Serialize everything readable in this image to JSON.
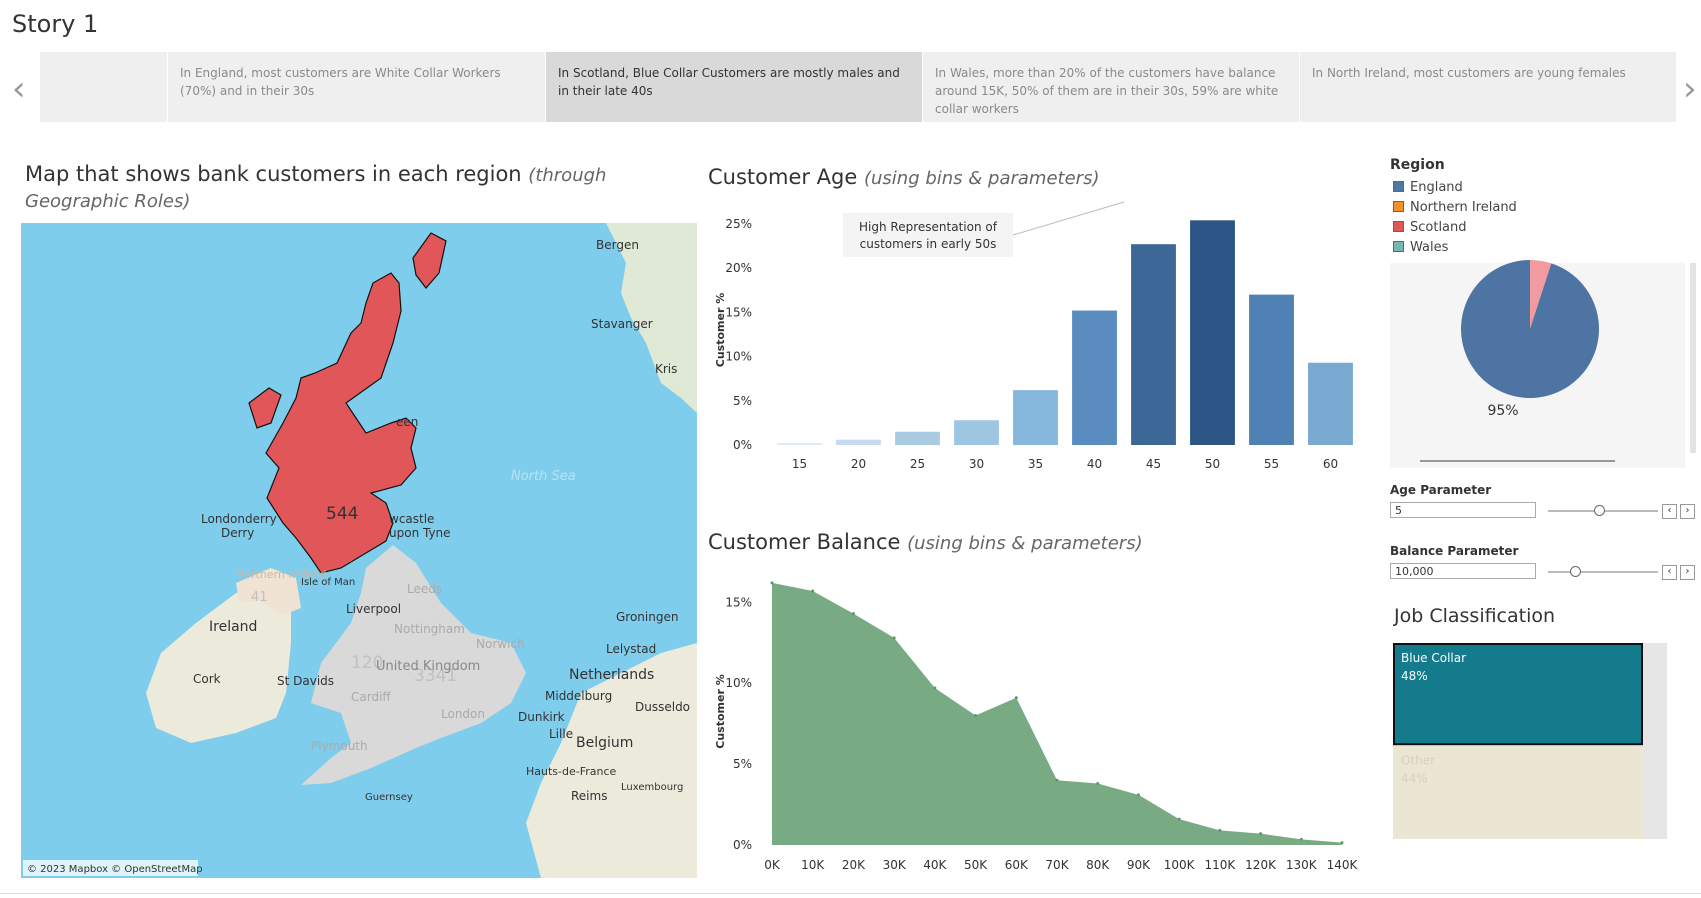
{
  "story": {
    "title": "Story 1",
    "points": [
      {
        "text": ""
      },
      {
        "text": "In England, most customers are White Collar Workers (70%) and in their 30s"
      },
      {
        "text": "In Scotland, Blue Collar Customers  are mostly males and in their late 40s"
      },
      {
        "text": "In Wales, more than 20% of the customers have balance around 15K, 50% of them are in their 30s, 59% are white collar workers"
      },
      {
        "text": "In North Ireland, most customers are young females"
      }
    ],
    "prev_icon": "chevron-left-icon",
    "next_icon": "chevron-right-icon"
  },
  "map": {
    "title": "Map that shows bank customers in each region",
    "subtitle": "(through Geographic Roles)",
    "highlight_region": "Scotland",
    "highlight_value": "544",
    "other_values": {
      "wales": "120",
      "england": "3341",
      "northern_ireland": "41"
    },
    "places": [
      "Bergen",
      "Stavanger",
      "Kris",
      "een",
      "North Sea",
      "Londonderry",
      "Derry",
      "Northern Ireland",
      "Isle of Man",
      "wcastle",
      "upon Tyne",
      "Leeds",
      "Liverpool",
      "Nottingham",
      "Norwich",
      "Ireland",
      "United Kingdom",
      "Groningen",
      "Lelystad",
      "Netherlands",
      "Cork",
      "St Davids",
      "Cardiff",
      "London",
      "Middelburg",
      "Dunkirk",
      "Dusseldo",
      "Lille",
      "Belgium",
      "Plymouth",
      "Hauts-de-France",
      "Guernsey",
      "Reims",
      "Luxembourg"
    ],
    "attribution": "© 2023 Mapbox © OpenStreetMap",
    "colors": {
      "sea": "#7fcdec",
      "scotland": "#e15759",
      "land": "#d9d9d9"
    }
  },
  "age_chart": {
    "title": "Customer Age",
    "subtitle": "(using bins & parameters)",
    "annotation": [
      "High Representation of",
      "customers in early 50s"
    ]
  },
  "balance_chart": {
    "title": "Customer Balance",
    "subtitle": "(using bins & parameters)"
  },
  "legend": {
    "title": "Region",
    "items": [
      {
        "label": "England",
        "color": "#4e79a7"
      },
      {
        "label": "Northern Ireland",
        "color": "#f28e2b"
      },
      {
        "label": "Scotland",
        "color": "#e15759"
      },
      {
        "label": "Wales",
        "color": "#76b7b2"
      }
    ]
  },
  "parameters": {
    "age": {
      "label": "Age Parameter",
      "value": "5"
    },
    "balance": {
      "label": "Balance Parameter",
      "value": "10,000"
    }
  },
  "job": {
    "title": "Job Classification"
  },
  "chart_data": [
    {
      "type": "bar",
      "title": "Customer Age",
      "ylabel": "Customer %",
      "categories": [
        "15",
        "20",
        "25",
        "30",
        "35",
        "40",
        "45",
        "50",
        "55",
        "60"
      ],
      "values": [
        0.2,
        0.6,
        1.5,
        2.8,
        6.2,
        15.2,
        22.7,
        25.4,
        17.0,
        9.3
      ],
      "y_ticks": [
        "0%",
        "5%",
        "10%",
        "15%",
        "20%",
        "25%"
      ],
      "ylim": [
        0,
        26
      ],
      "colors": [
        "#dbe9f6",
        "#c6dbef",
        "#a9cce3",
        "#9ec6e3",
        "#86b7dc",
        "#5b8cbf",
        "#3d6797",
        "#2c5585",
        "#5081b5",
        "#79a8d1"
      ]
    },
    {
      "type": "area",
      "title": "Customer Balance",
      "ylabel": "Customer %",
      "categories": [
        "0K",
        "10K",
        "20K",
        "30K",
        "40K",
        "50K",
        "60K",
        "70K",
        "80K",
        "90K",
        "100K",
        "110K",
        "120K",
        "130K",
        "140K"
      ],
      "values": [
        16.2,
        15.7,
        14.3,
        12.8,
        9.7,
        8.0,
        9.1,
        4.0,
        3.8,
        3.1,
        1.6,
        0.9,
        0.7,
        0.35,
        0.15
      ],
      "y_ticks": [
        "0%",
        "5%",
        "10%",
        "15%"
      ],
      "ylim": [
        0,
        16.5
      ],
      "color": "#5a9868"
    },
    {
      "type": "pie",
      "title": "Region",
      "slices": [
        {
          "label": "Scotland",
          "value": 5,
          "text": "5%",
          "color": "#f19aa0"
        },
        {
          "label": "England",
          "value": 95,
          "text": "95%",
          "color": "#4e74a3"
        }
      ]
    },
    {
      "type": "treemap",
      "title": "Job Classification",
      "items": [
        {
          "label": "Blue Collar",
          "value": 48,
          "text": "48%",
          "color": "#137b8b"
        },
        {
          "label": "Other",
          "value": 44,
          "text": "44%",
          "color": "#ebe5d3"
        }
      ]
    }
  ]
}
